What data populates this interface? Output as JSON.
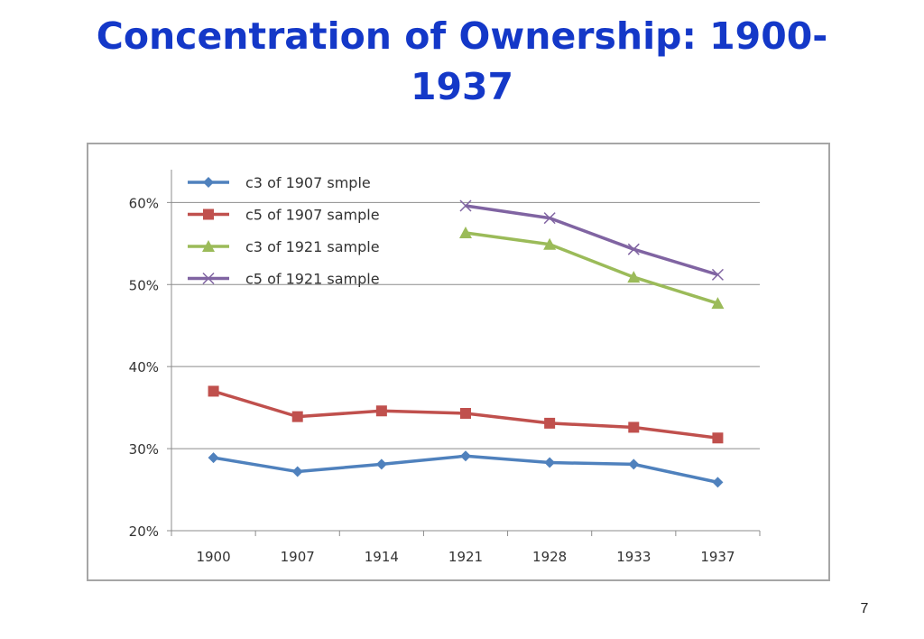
{
  "slide": {
    "title": "Concentration of Ownership: 1900-1937",
    "page_number": "7"
  },
  "chart_data": {
    "type": "line",
    "title": "",
    "xlabel": "",
    "ylabel": "",
    "categories": [
      "1900",
      "1907",
      "1914",
      "1921",
      "1928",
      "1933",
      "1937"
    ],
    "y_tick_labels": [
      "20%",
      "30%",
      "40%",
      "50%",
      "60%"
    ],
    "y_ticks": [
      20,
      30,
      40,
      50,
      60
    ],
    "ylim": [
      20,
      64
    ],
    "grid": true,
    "legend_position": "top-left",
    "series": [
      {
        "name": "c3 of 1907 smple",
        "color": "#4f81bd",
        "marker": "diamond",
        "values": [
          28.9,
          27.2,
          28.1,
          29.1,
          28.3,
          28.1,
          25.9
        ]
      },
      {
        "name": "c5 of 1907 sample",
        "color": "#c0504d",
        "marker": "square",
        "values": [
          37.0,
          33.9,
          34.6,
          34.3,
          33.1,
          32.6,
          31.3
        ]
      },
      {
        "name": "c3 of 1921 sample",
        "color": "#9bbb59",
        "marker": "triangle",
        "values": [
          null,
          null,
          null,
          56.3,
          54.9,
          50.9,
          47.7
        ]
      },
      {
        "name": "c5 of 1921 sample",
        "color": "#8064a2",
        "marker": "x",
        "values": [
          null,
          null,
          null,
          59.6,
          58.1,
          54.3,
          51.2
        ]
      }
    ]
  }
}
